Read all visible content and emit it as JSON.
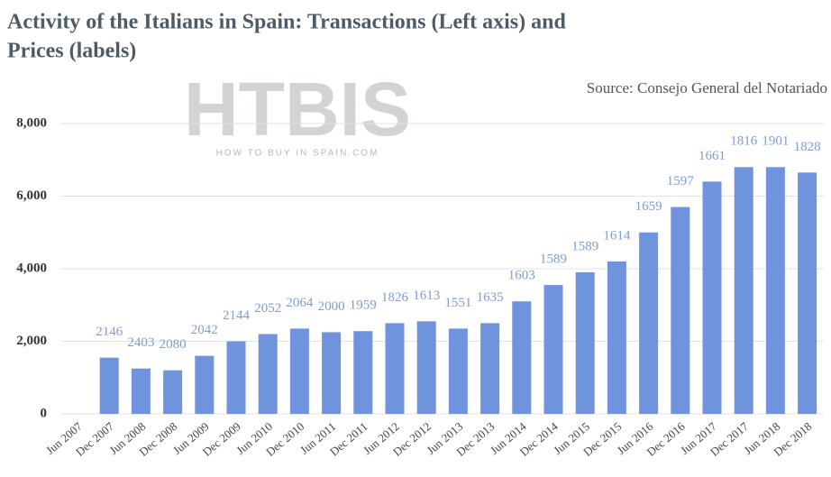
{
  "chart_data": {
    "type": "bar",
    "title_lines": [
      "Activity of the Italians in Spain: Transactions (Left axis) and",
      "Prices (labels)"
    ],
    "source": "Source: Consejo General del Notariado",
    "watermark": "HTBIS",
    "watermark_tagline": "HOW TO BUY IN SPAIN.COM",
    "categories": [
      "Jun 2007",
      "Dec 2007",
      "Jun 2008",
      "Dec 2008",
      "Jun 2009",
      "Dec 2009",
      "Jun 2010",
      "Dec 2010",
      "Jun 2011",
      "Dec 2011",
      "Jun 2012",
      "Dec 2012",
      "Jun 2013",
      "Dec 2013",
      "Jun 2014",
      "Dec 2014",
      "Jun 2015",
      "Dec 2015",
      "Jun 2016",
      "Dec 2016",
      "Jun 2017",
      "Dec 2017",
      "Jun 2018",
      "Dec 2018"
    ],
    "values": [
      null,
      1550,
      1250,
      1200,
      1600,
      2000,
      2200,
      2350,
      2250,
      2280,
      2500,
      2550,
      2350,
      2500,
      3100,
      3550,
      3900,
      4200,
      5000,
      5700,
      6400,
      6800,
      6800,
      6650
    ],
    "price_labels": [
      null,
      2146,
      2403,
      2080,
      2042,
      2144,
      2052,
      2064,
      2000,
      1959,
      1826,
      1613,
      1551,
      1635,
      1603,
      1589,
      1589,
      1614,
      1659,
      1597,
      1661,
      1816,
      1901,
      1828
    ],
    "color": "#6f93dc",
    "label_color": "#7d9cd9",
    "ylim": [
      0,
      8000
    ],
    "yticks": [
      0,
      {
        "value": 2000,
        "label": "2,000"
      },
      {
        "value": 4000,
        "label": "4,000"
      },
      {
        "value": 6000,
        "label": "6,000"
      },
      {
        "value": 8000,
        "label": "8,000"
      }
    ],
    "grid": true
  }
}
